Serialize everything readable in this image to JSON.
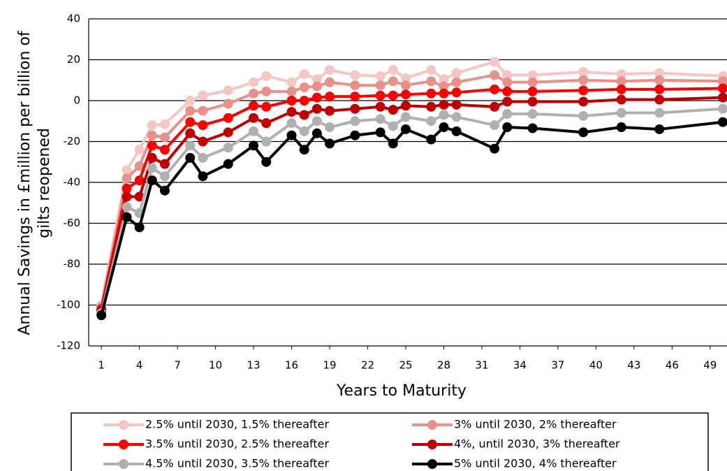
{
  "chart_data": {
    "type": "line",
    "xlabel": "Years to Maturity",
    "ylabel": [
      "Annual Savings in £million per billion of",
      "gilts reopened"
    ],
    "x": [
      1,
      3,
      4,
      5,
      6,
      8,
      9,
      11,
      13,
      14,
      16,
      17,
      18,
      19,
      21,
      23,
      24,
      25,
      27,
      28,
      29,
      32,
      33,
      35,
      39,
      42,
      45,
      50
    ],
    "xlim": [
      0,
      50
    ],
    "xticks": [
      1,
      4,
      7,
      10,
      13,
      16,
      19,
      22,
      25,
      28,
      31,
      34,
      37,
      40,
      43,
      46,
      49
    ],
    "ylim": [
      -120,
      40
    ],
    "yticks": [
      -120,
      -100,
      -80,
      -60,
      -40,
      -20,
      0,
      20,
      40
    ],
    "grid": true,
    "series": [
      {
        "name": "2.5% until 2030, 1.5% thereafter",
        "color": "#f5c6c2",
        "values": [
          -100,
          -34,
          -24,
          -12,
          -11.5,
          0,
          2.5,
          5,
          9,
          12,
          9,
          13,
          10.5,
          15,
          12.5,
          12,
          15,
          11,
          15,
          10.5,
          13.5,
          19,
          12.5,
          12.5,
          14,
          13,
          13.5,
          12
        ]
      },
      {
        "name": "3% until 2030, 2% thereafter",
        "color": "#e8918b",
        "values": [
          -101,
          -38,
          -32,
          -17,
          -18,
          -5,
          -5,
          -1.5,
          3.5,
          4.5,
          4.5,
          6.5,
          7,
          9,
          7.5,
          7.5,
          9.5,
          7.5,
          9.5,
          7,
          9,
          12.5,
          9,
          9,
          10,
          9.5,
          10,
          9.5
        ]
      },
      {
        "name": "3.5% until 2030, 2.5% thereafter",
        "color": "#ff0000",
        "values": [
          -102,
          -43,
          -39,
          -22,
          -24,
          -10.5,
          -12,
          -8.5,
          -2.5,
          -3,
          0,
          0,
          1.5,
          2,
          2,
          2.5,
          2.5,
          3,
          3.5,
          3.5,
          4,
          5.5,
          4.5,
          4.5,
          5,
          5.5,
          5.5,
          6
        ]
      },
      {
        "name": "4%, until 2030, 3% thereafter",
        "color": "#c00000",
        "values": [
          -103,
          -47,
          -47,
          -28,
          -31,
          -16,
          -20,
          -15.5,
          -8.5,
          -11,
          -5.5,
          -7,
          -4,
          -5,
          -4,
          -3,
          -4.5,
          -2.5,
          -3,
          -2,
          -2,
          -3,
          -0.5,
          -0.5,
          -0.5,
          0.5,
          0.5,
          1.5
        ]
      },
      {
        "name": "4.5% until 2030, 3.5% thereafter",
        "color": "#b0b0b0",
        "values": [
          -104,
          -52,
          -55,
          -33,
          -37,
          -22,
          -28,
          -23,
          -15,
          -20,
          -11,
          -15,
          -10,
          -13,
          -10,
          -9,
          -12.5,
          -8,
          -10,
          -7,
          -8,
          -12,
          -6.5,
          -6.5,
          -7.5,
          -6,
          -6,
          -4
        ]
      },
      {
        "name": "5% until 2030, 4% thereafter",
        "color": "#000000",
        "values": [
          -105,
          -57,
          -62,
          -39,
          -44,
          -28,
          -37,
          -31,
          -22,
          -30,
          -17,
          -24,
          -16,
          -21,
          -17,
          -15.5,
          -21,
          -14,
          -19,
          -13,
          -15,
          -23.5,
          -13,
          -13.5,
          -15.5,
          -13,
          -14,
          -10.5
        ]
      }
    ]
  }
}
